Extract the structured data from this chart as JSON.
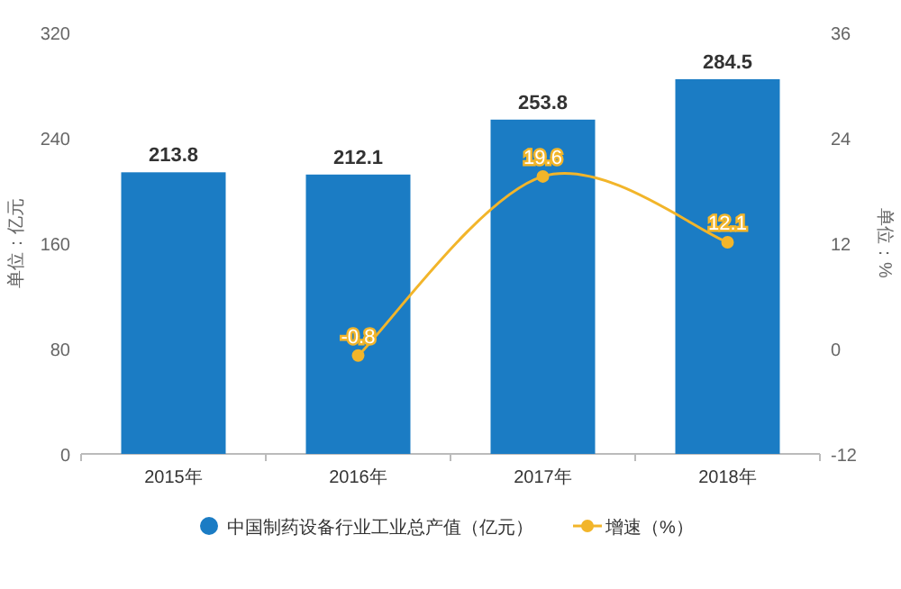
{
  "chart_data": {
    "type": "bar",
    "categories": [
      "2015年",
      "2016年",
      "2017年",
      "2018年"
    ],
    "ylabel": "单位：亿元",
    "y2label": "单位：%",
    "ylim": [
      0,
      320
    ],
    "yticks": [
      0,
      80,
      160,
      240,
      320
    ],
    "y2lim": [
      -12,
      36
    ],
    "y2ticks": [
      -12,
      0,
      12,
      24,
      36
    ],
    "series": [
      {
        "name": "中国制药设备行业工业总产值（亿元）",
        "color": "#1b7cc4",
        "values": [
          213.8,
          212.1,
          253.8,
          284.5
        ]
      },
      {
        "name": "增速（%）",
        "type": "line",
        "axis": "y2",
        "color": "#f2b52a",
        "marker": "circle",
        "values": [
          null,
          -0.8,
          19.6,
          12.1
        ]
      }
    ],
    "data_labels": true,
    "legend": "bottom"
  }
}
